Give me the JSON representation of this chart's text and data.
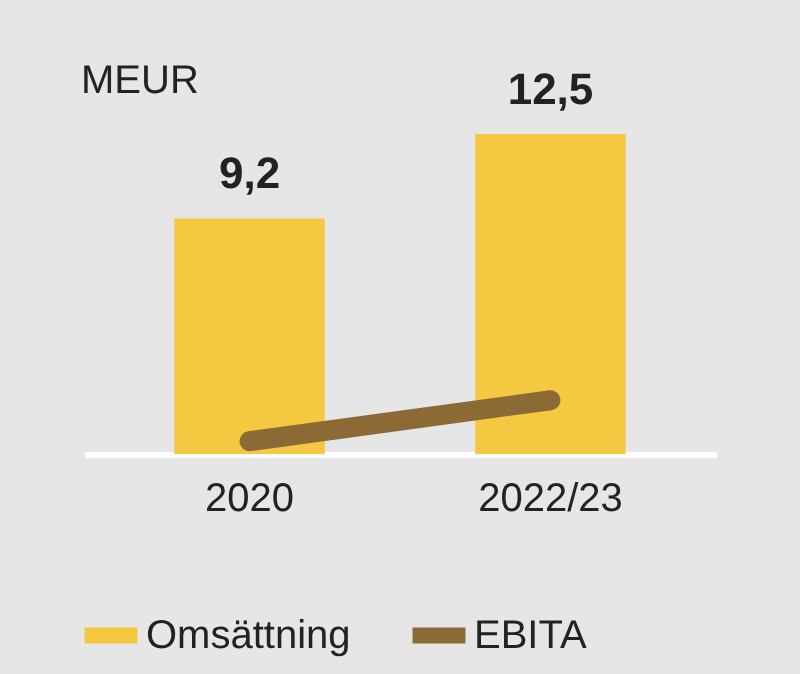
{
  "chart_data": {
    "type": "bar",
    "ylabel": "MEUR",
    "categories": [
      "2020",
      "2022/23"
    ],
    "legend": "bottom",
    "grid": false,
    "series": [
      {
        "name": "Omsättning",
        "color": "#f5c842",
        "values": [
          9.2,
          12.5
        ],
        "value_labels": [
          "9,2",
          "12,5"
        ]
      },
      {
        "name": "EBITA",
        "type": "line",
        "color": "#8b6a35",
        "values": [
          0.5,
          2.1
        ]
      }
    ]
  }
}
